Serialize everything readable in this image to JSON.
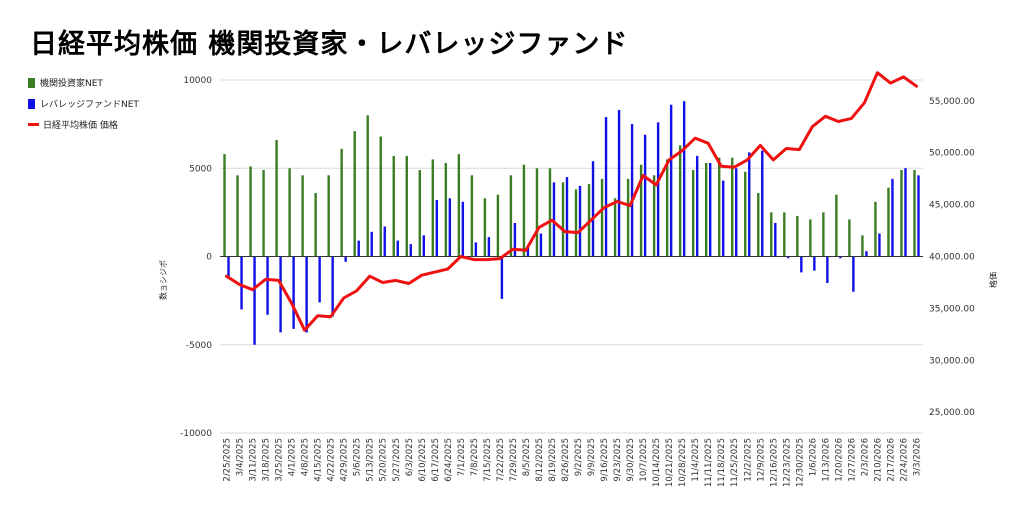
{
  "chart_data": {
    "type": "bar+line",
    "title": "日経平均株価 機関投資家・レバレッジファンド",
    "ylabel_left": "数ョシジポ",
    "ylabel_right": "格価",
    "left_ticks": [
      "10000",
      "5000",
      "0",
      "-5000",
      "-10000"
    ],
    "left_ylim": [
      -10000,
      10000
    ],
    "right_ticks": [
      "55,000.00",
      "50,000.00",
      "45,000.00",
      "40,000.00",
      "35,000.00",
      "30,000.00",
      "25,000.00"
    ],
    "right_ylim": [
      23000,
      57000
    ],
    "legend_position": "top-left",
    "colors": {
      "inst": "#3a7d22",
      "lev": "#1010e8",
      "price": "#ee1111"
    },
    "categories": [
      "2/25/2025",
      "3/4/2025",
      "3/11/2025",
      "3/18/2025",
      "3/25/2025",
      "4/1/2025",
      "4/8/2025",
      "4/15/2025",
      "4/22/2025",
      "4/29/2025",
      "5/6/2025",
      "5/13/2025",
      "5/20/2025",
      "5/27/2025",
      "6/3/2025",
      "6/10/2025",
      "6/17/2025",
      "6/24/2025",
      "7/1/2025",
      "7/8/2025",
      "7/15/2025",
      "7/22/2025",
      "7/29/2025",
      "8/5/2025",
      "8/12/2025",
      "8/19/2025",
      "8/26/2025",
      "9/2/2025",
      "9/9/2025",
      "9/16/2025",
      "9/23/2025",
      "9/30/2025",
      "10/7/2025",
      "10/14/2025",
      "10/21/2025",
      "10/28/2025",
      "11/4/2025",
      "11/11/2025",
      "11/18/2025",
      "11/25/2025",
      "12/2/2025",
      "12/9/2025",
      "12/16/2025",
      "12/23/2025",
      "12/30/2025",
      "1/6/2026",
      "1/13/2026",
      "1/20/2026",
      "1/27/2026",
      "2/3/2026",
      "2/10/2026",
      "2/17/2026",
      "2/24/2026",
      "3/3/2026"
    ],
    "series": [
      {
        "name": "機関投資家NET",
        "type": "bar",
        "values": [
          5800,
          4600,
          5100,
          4900,
          6600,
          5000,
          4600,
          3600,
          4600,
          6100,
          7100,
          8000,
          6800,
          5700,
          5700,
          4900,
          5500,
          5300,
          5800,
          4600,
          3300,
          3500,
          4600,
          5200,
          5000,
          5000,
          4200,
          3800,
          4100,
          4400,
          3300,
          4400,
          5200,
          4600,
          5500,
          6300,
          4900,
          5300,
          5600,
          5600,
          4800,
          3600,
          2500,
          2500,
          2300,
          2100,
          2500,
          3500,
          2100,
          1200,
          3100,
          3900,
          4900,
          4900
        ]
      },
      {
        "name": "レバレッジファンドNET",
        "type": "bar",
        "values": [
          -1200,
          -3000,
          -5000,
          -3300,
          -4300,
          -4100,
          -4300,
          -2600,
          -3400,
          -300,
          900,
          1400,
          1700,
          900,
          700,
          1200,
          3200,
          3300,
          3100,
          800,
          1100,
          -2400,
          1900,
          500,
          1300,
          4200,
          4500,
          4000,
          5400,
          7900,
          8300,
          7500,
          6900,
          7600,
          8600,
          8800,
          5700,
          5300,
          4300,
          5000,
          5900,
          6000,
          1900,
          -100,
          -900,
          -800,
          -1500,
          -100,
          -2000,
          300,
          1300,
          4400,
          5000,
          4600
        ]
      },
      {
        "name": "日経平均株価 価格",
        "type": "line",
        "axis": "right",
        "values": [
          38100,
          37300,
          36800,
          37800,
          37700,
          35500,
          32900,
          34300,
          34200,
          36000,
          36700,
          38100,
          37500,
          37700,
          37400,
          38200,
          38500,
          38800,
          40000,
          39700,
          39700,
          39800,
          40700,
          40600,
          42800,
          43500,
          42400,
          42300,
          43500,
          44700,
          45300,
          44900,
          47800,
          46900,
          49300,
          50200,
          51400,
          50900,
          48700,
          48600,
          49300,
          50700,
          49300,
          50400,
          50300,
          52500,
          53500,
          53000,
          53300,
          54800,
          57700,
          56700,
          57300,
          56400
        ]
      }
    ]
  }
}
